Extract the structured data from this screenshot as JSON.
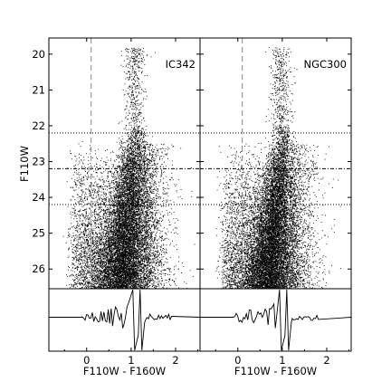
{
  "chart_data": {
    "type": "scatter",
    "ylabel": "F110W",
    "xlabel": "F110W - F160W",
    "xlim": [
      -0.85,
      2.55
    ],
    "ylim": [
      26.55,
      19.55
    ],
    "y_inverted": true,
    "xticks": [
      "0",
      "1",
      "2"
    ],
    "xtick_values": [
      0,
      1,
      2
    ],
    "yticks": [
      "20",
      "21",
      "22",
      "23",
      "24",
      "25",
      "26"
    ],
    "ytick_values": [
      20,
      21,
      22,
      23,
      24,
      25,
      26
    ],
    "reference_lines": {
      "dotted_y": [
        22.2,
        24.2
      ],
      "dashdot_y": [
        23.2
      ],
      "dashed_x": 0.1
    },
    "colors": {
      "points": "#000000",
      "axes": "#000000",
      "guide": "#888888"
    },
    "panels": [
      {
        "name": "IC342",
        "rgb_tip_color": 1.12,
        "rgb_width": 0.12,
        "lower_trace": {
          "type": "line",
          "description_values": []
        }
      },
      {
        "name": "NGC300",
        "rgb_tip_color": 1.02,
        "rgb_width": 0.1,
        "lower_trace": {
          "type": "line",
          "description_values": []
        }
      }
    ]
  }
}
